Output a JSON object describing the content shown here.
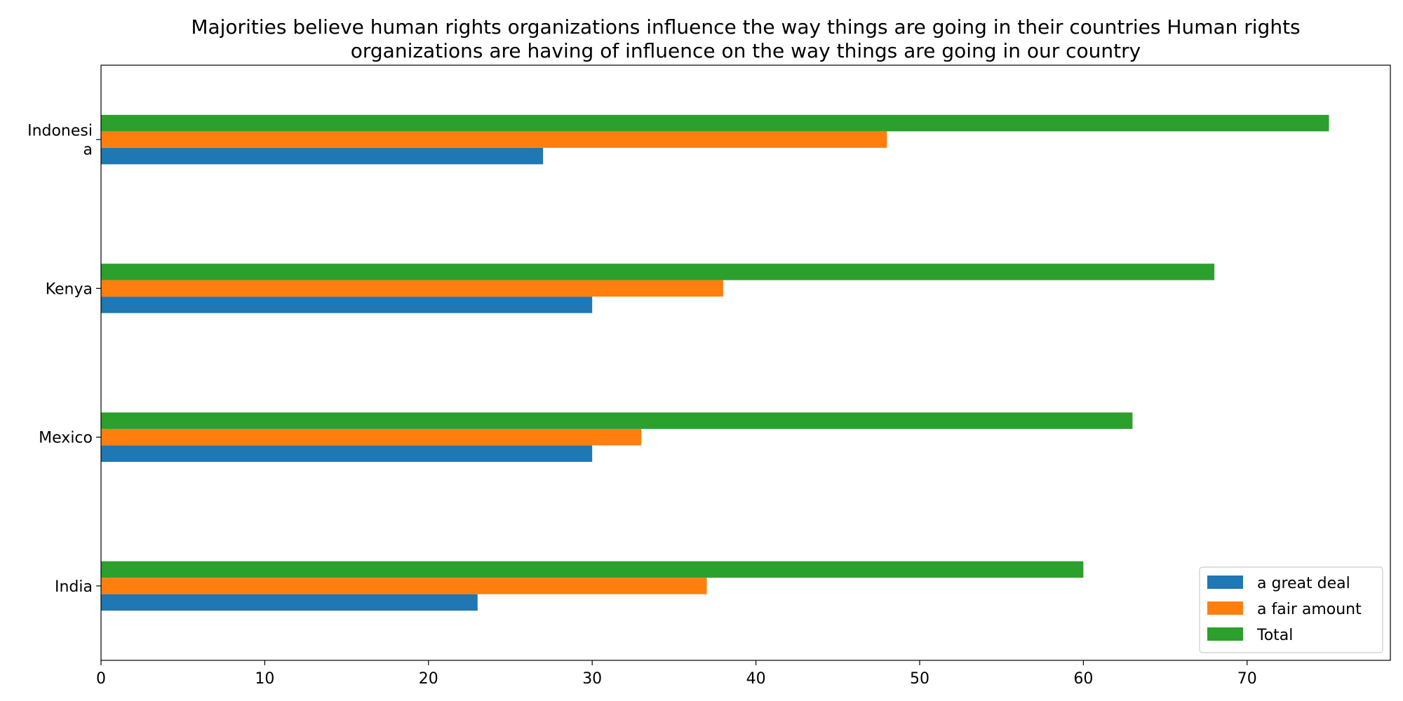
{
  "chart_data": {
    "type": "bar",
    "orientation": "horizontal",
    "title_lines": [
      "Majorities believe human rights organizations influence the way things are going in their countries Human rights",
      "organizations are having of influence on the way things are going in our country"
    ],
    "categories": [
      "India",
      "Mexico",
      "Kenya",
      "Indonesia"
    ],
    "category_label_lines": [
      [
        "India"
      ],
      [
        "Mexico"
      ],
      [
        "Kenya"
      ],
      [
        "Indonesi",
        "a"
      ]
    ],
    "series": [
      {
        "name": "a great deal",
        "color": "#1f77b4",
        "values": [
          23,
          30,
          30,
          27
        ]
      },
      {
        "name": "a fair amount",
        "color": "#ff7f0e",
        "values": [
          37,
          33,
          38,
          48
        ]
      },
      {
        "name": "Total",
        "color": "#2ca02c",
        "values": [
          60,
          63,
          68,
          75
        ]
      }
    ],
    "xlim": [
      0,
      78.75
    ],
    "xticks": [
      0,
      10,
      20,
      30,
      40,
      50,
      60,
      70
    ],
    "xlabel": "",
    "ylabel": "",
    "grid": false,
    "legend_position": "lower-right"
  }
}
